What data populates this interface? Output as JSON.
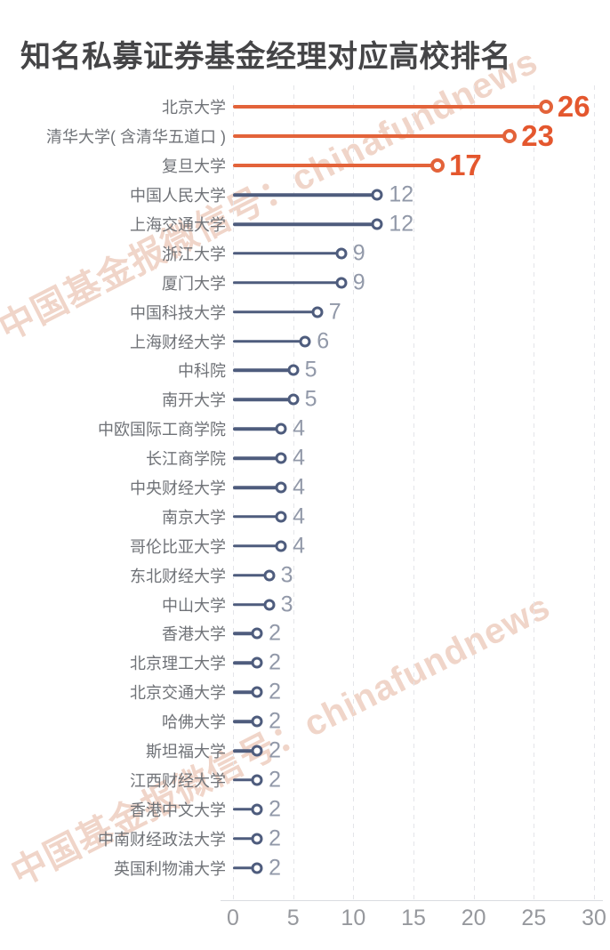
{
  "header": {
    "title": "知名私募证券基金经理对应高校排名"
  },
  "watermark": {
    "text": "中国基金报微信号：chinafundnews"
  },
  "colors": {
    "orange": "#E3633A",
    "orange_text": "#E4572E",
    "slate": "#4E5C7D",
    "value_gray": "#9299A9",
    "label_gray": "#6F7277",
    "tick_gray": "#96989D",
    "grid": "#E4E5E9",
    "watermark": "#E0A488",
    "title": "#454547"
  },
  "chart_data": {
    "type": "bar",
    "variant": "horizontal-lollipop",
    "title": "知名私募证券基金经理对应高校排名",
    "categories": [
      "北京大学",
      "清华大学( 含清华五道口 )",
      "复旦大学",
      "中国人民大学",
      "上海交通大学",
      "浙江大学",
      "厦门大学",
      "中国科技大学",
      "上海财经大学",
      "中科院",
      "南开大学",
      "中欧国际工商学院",
      "长江商学院",
      "中央财经大学",
      "南京大学",
      "哥伦比亚大学",
      "东北财经大学",
      "中山大学",
      "香港大学",
      "北京理工大学",
      "北京交通大学",
      "哈佛大学",
      "斯坦福大学",
      "江西财经大学",
      "香港中文大学",
      "中南财经政法大学",
      "英国利物浦大学"
    ],
    "values": [
      26,
      23,
      17,
      12,
      12,
      9,
      9,
      7,
      6,
      5,
      5,
      4,
      4,
      4,
      4,
      4,
      3,
      3,
      2,
      2,
      2,
      2,
      2,
      2,
      2,
      2,
      2
    ],
    "highlight_top_n": 3,
    "xlabel": "",
    "ylabel": "",
    "xlim": [
      0,
      30
    ],
    "xticks": [
      0,
      5,
      10,
      15,
      20,
      25,
      30
    ],
    "grid": "vertical-dashed",
    "legend": "none"
  }
}
